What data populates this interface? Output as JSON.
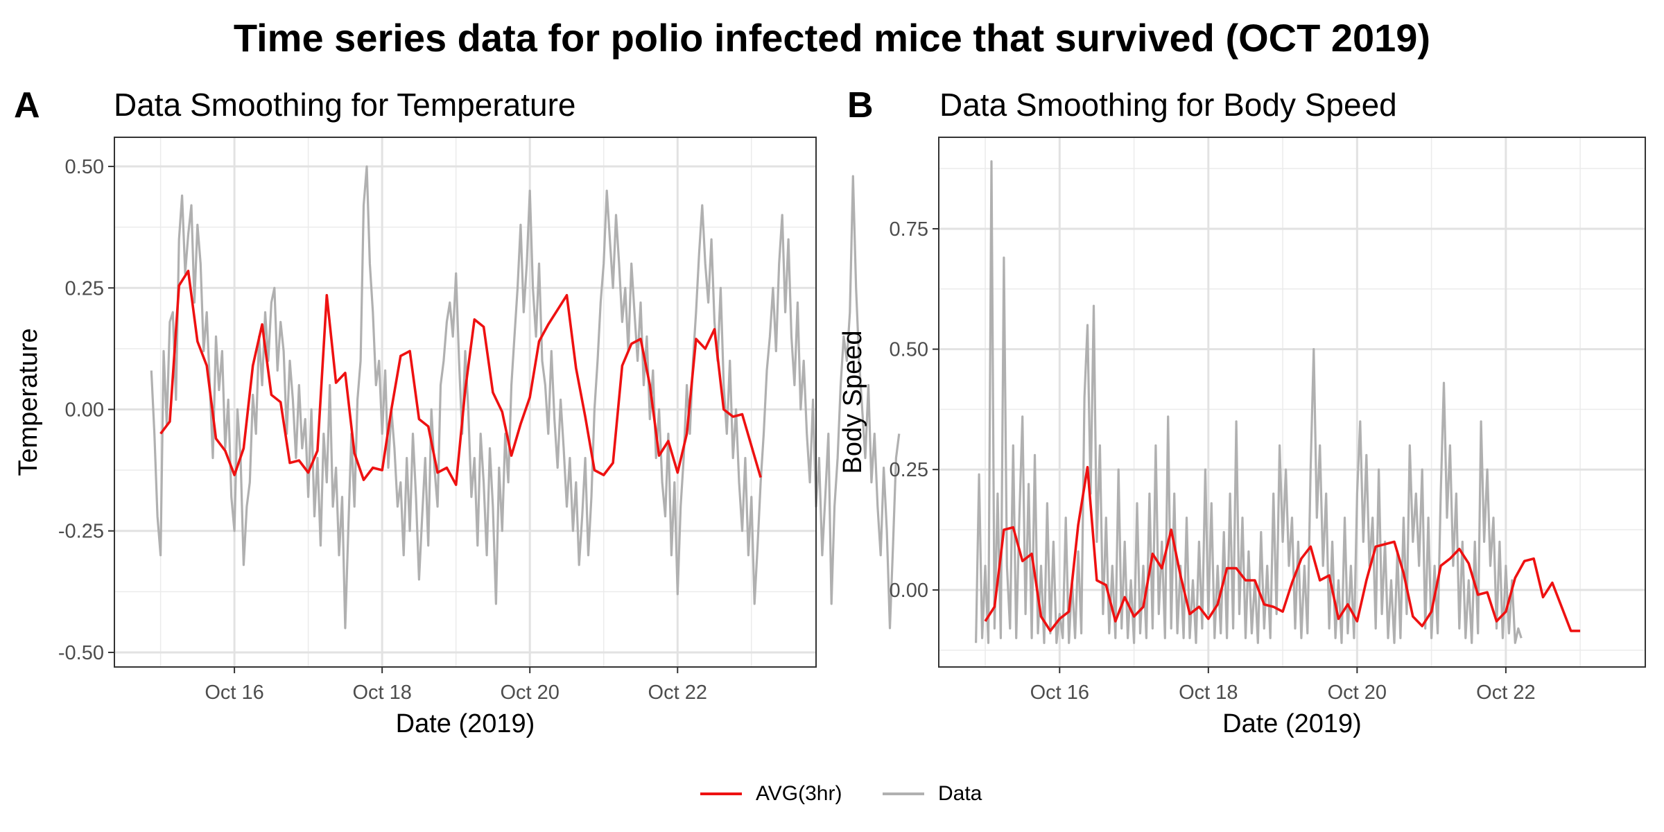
{
  "title": "Time series data for polio infected mice that survived (OCT 2019)",
  "legend": {
    "items": [
      {
        "label": "AVG(3hr)",
        "color": "#ee1111"
      },
      {
        "label": "Data",
        "color": "#b0b0b0"
      }
    ]
  },
  "chart_data": [
    {
      "type": "line",
      "panel": "A",
      "title": "Data Smoothing for Temperature",
      "xlabel": "Date (2019)",
      "ylabel": "Temperature",
      "xlim": [
        "2019-10-14T09:00",
        "2019-10-23T21:00"
      ],
      "ylim": [
        -0.53,
        0.56
      ],
      "xticks": [
        {
          "value": "2019-10-16T00:00",
          "label": "Oct 16"
        },
        {
          "value": "2019-10-18T00:00",
          "label": "Oct 18"
        },
        {
          "value": "2019-10-20T00:00",
          "label": "Oct 20"
        },
        {
          "value": "2019-10-22T00:00",
          "label": "Oct 22"
        }
      ],
      "yticks": [
        {
          "value": 0.5,
          "label": "0.50"
        },
        {
          "value": 0.25,
          "label": "0.25"
        },
        {
          "value": 0.0,
          "label": "0.00"
        },
        {
          "value": -0.25,
          "label": "-0.25"
        },
        {
          "value": -0.5,
          "label": "-0.50"
        }
      ],
      "grid": true,
      "series": [
        {
          "name": "AVG(3hr)",
          "color": "#ee1111",
          "start": "2019-10-15T00:00",
          "step_hours": 3,
          "values": [
            -0.05,
            -0.025,
            0.255,
            0.285,
            0.14,
            0.09,
            -0.06,
            -0.085,
            -0.135,
            -0.08,
            0.09,
            0.175,
            0.03,
            0.015,
            -0.11,
            -0.105,
            -0.13,
            -0.085,
            0.235,
            0.055,
            0.075,
            -0.09,
            -0.145,
            -0.12,
            -0.125,
            0.0,
            0.11,
            0.12,
            -0.02,
            -0.035,
            -0.13,
            -0.12,
            -0.155,
            0.04,
            0.185,
            0.17,
            0.035,
            -0.005,
            -0.095,
            -0.03,
            0.025,
            0.14,
            0.175,
            0.205,
            0.235,
            0.085,
            -0.015,
            -0.125,
            -0.135,
            -0.11,
            0.09,
            0.135,
            0.145,
            0.05,
            -0.095,
            -0.065,
            -0.13,
            -0.05,
            0.145,
            0.125,
            0.165,
            0.0,
            -0.015,
            -0.01,
            -0.075,
            -0.14
          ]
        },
        {
          "name": "Data",
          "color": "#b0b0b0",
          "start": "2019-10-14T21:00",
          "step_hours": 1,
          "values": [
            0.08,
            -0.05,
            -0.22,
            -0.3,
            0.12,
            -0.03,
            0.18,
            0.2,
            0.02,
            0.35,
            0.44,
            0.28,
            0.36,
            0.42,
            0.22,
            0.38,
            0.3,
            0.12,
            0.2,
            0.05,
            -0.1,
            0.15,
            0.04,
            0.12,
            -0.08,
            0.02,
            -0.18,
            -0.25,
            0.0,
            -0.1,
            -0.32,
            -0.2,
            -0.15,
            0.03,
            -0.05,
            0.15,
            0.05,
            0.2,
            0.1,
            0.22,
            0.25,
            0.08,
            0.18,
            0.12,
            -0.05,
            0.1,
            0.02,
            -0.1,
            0.05,
            -0.08,
            -0.02,
            -0.18,
            0.0,
            -0.22,
            -0.1,
            -0.28,
            -0.05,
            -0.15,
            0.05,
            -0.2,
            -0.12,
            -0.3,
            -0.18,
            -0.45,
            -0.25,
            -0.05,
            -0.2,
            0.02,
            0.1,
            0.42,
            0.5,
            0.3,
            0.2,
            0.05,
            0.1,
            -0.05,
            0.08,
            -0.12,
            0.0,
            -0.08,
            -0.2,
            -0.15,
            -0.3,
            -0.1,
            -0.25,
            -0.05,
            -0.18,
            -0.35,
            -0.22,
            -0.1,
            -0.28,
            0.0,
            -0.12,
            -0.2,
            0.05,
            0.1,
            0.18,
            0.22,
            0.15,
            0.28,
            0.1,
            -0.05,
            0.12,
            0.0,
            -0.18,
            -0.1,
            -0.28,
            -0.05,
            -0.15,
            -0.3,
            -0.08,
            -0.2,
            -0.4,
            -0.12,
            -0.25,
            -0.05,
            -0.15,
            0.05,
            0.15,
            0.25,
            0.38,
            0.2,
            0.3,
            0.45,
            0.25,
            0.15,
            0.3,
            0.1,
            0.05,
            -0.05,
            0.12,
            -0.02,
            -0.12,
            0.02,
            -0.08,
            -0.2,
            -0.1,
            -0.25,
            -0.15,
            -0.32,
            -0.22,
            -0.1,
            -0.3,
            -0.18,
            0.0,
            0.1,
            0.22,
            0.3,
            0.45,
            0.35,
            0.25,
            0.4,
            0.3,
            0.18,
            0.25,
            0.12,
            0.3,
            0.2,
            0.1,
            0.22,
            0.05,
            0.15,
            -0.02,
            0.08,
            -0.1,
            0.0,
            -0.15,
            -0.22,
            -0.05,
            -0.3,
            -0.15,
            -0.38,
            -0.2,
            -0.1,
            0.05,
            -0.05,
            0.1,
            0.2,
            0.32,
            0.42,
            0.3,
            0.22,
            0.35,
            0.18,
            0.1,
            0.25,
            0.05,
            -0.05,
            0.1,
            -0.1,
            0.0,
            -0.15,
            -0.25,
            -0.1,
            -0.3,
            -0.18,
            -0.4,
            -0.28,
            -0.15,
            -0.05,
            0.08,
            0.15,
            0.25,
            0.12,
            0.3,
            0.4,
            0.2,
            0.35,
            0.15,
            0.05,
            0.22,
            0.0,
            0.1,
            -0.05,
            -0.15,
            0.02,
            -0.2,
            -0.1,
            -0.3,
            -0.18,
            -0.05,
            -0.4,
            -0.2,
            -0.1,
            0.05,
            0.15,
            0.1,
            0.2,
            0.48,
            0.25,
            0.1,
            0.0,
            -0.1,
            0.05,
            -0.15,
            -0.05,
            -0.2,
            -0.3,
            -0.12,
            -0.25,
            -0.45,
            -0.28,
            -0.1,
            -0.05
          ]
        }
      ]
    },
    {
      "type": "line",
      "panel": "B",
      "title": "Data Smoothing for Body Speed",
      "xlabel": "Date (2019)",
      "ylabel": "Body Speed",
      "xlim": [
        "2019-10-14T09:00",
        "2019-10-23T21:00"
      ],
      "ylim": [
        -0.16,
        0.94
      ],
      "xticks": [
        {
          "value": "2019-10-16T00:00",
          "label": "Oct 16"
        },
        {
          "value": "2019-10-18T00:00",
          "label": "Oct 18"
        },
        {
          "value": "2019-10-20T00:00",
          "label": "Oct 20"
        },
        {
          "value": "2019-10-22T00:00",
          "label": "Oct 22"
        }
      ],
      "yticks": [
        {
          "value": 0.75,
          "label": "0.75"
        },
        {
          "value": 0.5,
          "label": "0.50"
        },
        {
          "value": 0.25,
          "label": "0.25"
        },
        {
          "value": 0.0,
          "label": "0.00"
        }
      ],
      "grid": true,
      "series": [
        {
          "name": "AVG(3hr)",
          "color": "#ee1111",
          "start": "2019-10-15T00:00",
          "step_hours": 3,
          "values": [
            -0.065,
            -0.035,
            0.125,
            0.13,
            0.06,
            0.075,
            -0.055,
            -0.085,
            -0.06,
            -0.045,
            0.135,
            0.255,
            0.02,
            0.01,
            -0.065,
            -0.015,
            -0.055,
            -0.035,
            0.075,
            0.045,
            0.125,
            0.03,
            -0.05,
            -0.035,
            -0.06,
            -0.03,
            0.045,
            0.045,
            0.02,
            0.02,
            -0.03,
            -0.035,
            -0.045,
            0.015,
            0.065,
            0.09,
            0.02,
            0.03,
            -0.06,
            -0.03,
            -0.065,
            0.02,
            0.09,
            0.095,
            0.1,
            0.035,
            -0.055,
            -0.075,
            -0.045,
            0.05,
            0.065,
            0.085,
            0.055,
            -0.01,
            -0.005,
            -0.065,
            -0.045,
            0.025,
            0.06,
            0.065,
            -0.015,
            0.015,
            -0.035,
            -0.085,
            -0.085
          ]
        },
        {
          "name": "Data",
          "color": "#b0b0b0",
          "start": "2019-10-14T21:00",
          "step_hours": 1,
          "values": [
            -0.11,
            0.24,
            -0.1,
            0.05,
            -0.11,
            0.89,
            -0.08,
            0.2,
            -0.1,
            0.69,
            0.05,
            -0.08,
            0.3,
            -0.1,
            0.15,
            0.36,
            -0.05,
            0.22,
            -0.1,
            0.28,
            -0.09,
            0.05,
            -0.11,
            0.18,
            -0.09,
            0.1,
            -0.11,
            -0.05,
            -0.1,
            0.15,
            -0.11,
            0.02,
            -0.1,
            0.08,
            -0.09,
            0.4,
            0.55,
            0.2,
            0.59,
            0.1,
            0.3,
            -0.05,
            0.15,
            -0.09,
            0.05,
            -0.1,
            0.25,
            -0.08,
            0.1,
            -0.1,
            0.02,
            -0.11,
            0.18,
            -0.09,
            0.05,
            -0.1,
            0.2,
            -0.08,
            0.3,
            -0.05,
            0.1,
            -0.1,
            0.36,
            -0.08,
            0.2,
            -0.09,
            0.05,
            -0.1,
            0.15,
            -0.1,
            0.02,
            -0.11,
            0.1,
            -0.08,
            0.25,
            -0.05,
            0.18,
            -0.1,
            0.05,
            -0.09,
            0.12,
            -0.1,
            0.2,
            -0.08,
            0.35,
            -0.05,
            0.15,
            -0.1,
            0.08,
            -0.09,
            0.02,
            -0.11,
            0.12,
            -0.08,
            0.05,
            -0.1,
            0.2,
            -0.05,
            0.3,
            0.1,
            0.25,
            0.05,
            0.15,
            -0.08,
            0.1,
            -0.1,
            0.05,
            -0.09,
            0.25,
            0.5,
            0.15,
            0.3,
            0.05,
            0.2,
            -0.08,
            0.1,
            -0.1,
            0.02,
            -0.11,
            0.15,
            -0.09,
            0.05,
            -0.1,
            0.2,
            0.35,
            0.1,
            0.28,
            0.05,
            0.15,
            -0.08,
            0.25,
            -0.05,
            0.1,
            -0.1,
            0.02,
            -0.11,
            0.08,
            -0.1,
            0.15,
            -0.05,
            0.3,
            0.1,
            0.2,
            0.05,
            0.25,
            -0.08,
            0.15,
            -0.1,
            0.05,
            -0.09,
            0.2,
            0.43,
            0.15,
            0.3,
            0.05,
            0.2,
            -0.08,
            0.1,
            -0.1,
            0.02,
            -0.11,
            0.1,
            -0.09,
            0.35,
            0.1,
            0.25,
            0.05,
            0.15,
            -0.08,
            0.1,
            -0.1,
            0.05,
            -0.09,
            0.02,
            -0.11,
            -0.08,
            -0.1
          ]
        }
      ]
    }
  ]
}
